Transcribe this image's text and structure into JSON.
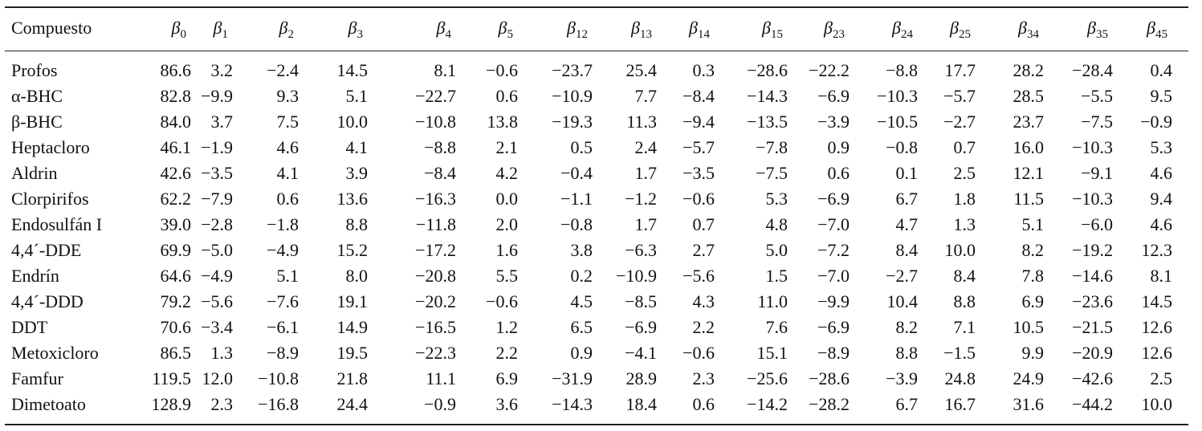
{
  "table": {
    "header": [
      "Compuesto",
      {
        "symbol": "β",
        "subscript": "0"
      },
      {
        "symbol": "β",
        "subscript": "1"
      },
      {
        "symbol": "β",
        "subscript": "2"
      },
      {
        "symbol": "β",
        "subscript": "3"
      },
      {
        "symbol": "β",
        "subscript": "4"
      },
      {
        "symbol": "β",
        "subscript": "5"
      },
      {
        "symbol": "β",
        "subscript": "12"
      },
      {
        "symbol": "β",
        "subscript": "13"
      },
      {
        "symbol": "β",
        "subscript": "14"
      },
      {
        "symbol": "β",
        "subscript": "15"
      },
      {
        "symbol": "β",
        "subscript": "23"
      },
      {
        "symbol": "β",
        "subscript": "24"
      },
      {
        "symbol": "β",
        "subscript": "25"
      },
      {
        "symbol": "β",
        "subscript": "34"
      },
      {
        "symbol": "β",
        "subscript": "35"
      },
      {
        "symbol": "β",
        "subscript": "45"
      }
    ],
    "rows": [
      [
        "Profos",
        "86.6",
        "3.2",
        "−2.4",
        "14.5",
        "8.1",
        "−0.6",
        "−23.7",
        "25.4",
        "0.3",
        "−28.6",
        "−22.2",
        "−8.8",
        "17.7",
        "28.2",
        "−28.4",
        "0.4"
      ],
      [
        "α-BHC",
        "82.8",
        "−9.9",
        "9.3",
        "5.1",
        "−22.7",
        "0.6",
        "−10.9",
        "7.7",
        "−8.4",
        "−14.3",
        "−6.9",
        "−10.3",
        "−5.7",
        "28.5",
        "−5.5",
        "9.5"
      ],
      [
        "β-BHC",
        "84.0",
        "3.7",
        "7.5",
        "10.0",
        "−10.8",
        "13.8",
        "−19.3",
        "11.3",
        "−9.4",
        "−13.5",
        "−3.9",
        "−10.5",
        "−2.7",
        "23.7",
        "−7.5",
        "−0.9"
      ],
      [
        "Heptacloro",
        "46.1",
        "−1.9",
        "4.6",
        "4.1",
        "−8.8",
        "2.1",
        "0.5",
        "2.4",
        "−5.7",
        "−7.8",
        "0.9",
        "−0.8",
        "0.7",
        "16.0",
        "−10.3",
        "5.3"
      ],
      [
        "Aldrin",
        "42.6",
        "−3.5",
        "4.1",
        "3.9",
        "−8.4",
        "4.2",
        "−0.4",
        "1.7",
        "−3.5",
        "−7.5",
        "0.6",
        "0.1",
        "2.5",
        "12.1",
        "−9.1",
        "4.6"
      ],
      [
        "Clorpirifos",
        "62.2",
        "−7.9",
        "0.6",
        "13.6",
        "−16.3",
        "0.0",
        "−1.1",
        "−1.2",
        "−0.6",
        "5.3",
        "−6.9",
        "6.7",
        "1.8",
        "11.5",
        "−10.3",
        "9.4"
      ],
      [
        "Endosulfán I",
        "39.0",
        "−2.8",
        "−1.8",
        "8.8",
        "−11.8",
        "2.0",
        "−0.8",
        "1.7",
        "0.7",
        "4.8",
        "−7.0",
        "4.7",
        "1.3",
        "5.1",
        "−6.0",
        "4.6"
      ],
      [
        "4,4´-DDE",
        "69.9",
        "−5.0",
        "−4.9",
        "15.2",
        "−17.2",
        "1.6",
        "3.8",
        "−6.3",
        "2.7",
        "5.0",
        "−7.2",
        "8.4",
        "10.0",
        "8.2",
        "−19.2",
        "12.3"
      ],
      [
        "Endrín",
        "64.6",
        "−4.9",
        "5.1",
        "8.0",
        "−20.8",
        "5.5",
        "0.2",
        "−10.9",
        "−5.6",
        "1.5",
        "−7.0",
        "−2.7",
        "8.4",
        "7.8",
        "−14.6",
        "8.1"
      ],
      [
        "4,4´-DDD",
        "79.2",
        "−5.6",
        "−7.6",
        "19.1",
        "−20.2",
        "−0.6",
        "4.5",
        "−8.5",
        "4.3",
        "11.0",
        "−9.9",
        "10.4",
        "8.8",
        "6.9",
        "−23.6",
        "14.5"
      ],
      [
        "DDT",
        "70.6",
        "−3.4",
        "−6.1",
        "14.9",
        "−16.5",
        "1.2",
        "6.5",
        "−6.9",
        "2.2",
        "7.6",
        "−6.9",
        "8.2",
        "7.1",
        "10.5",
        "−21.5",
        "12.6"
      ],
      [
        "Metoxicloro",
        "86.5",
        "1.3",
        "−8.9",
        "19.5",
        "−22.3",
        "2.2",
        "0.9",
        "−4.1",
        "−0.6",
        "15.1",
        "−8.9",
        "8.8",
        "−1.5",
        "9.9",
        "−20.9",
        "12.6"
      ],
      [
        "Famfur",
        "119.5",
        "12.0",
        "−10.8",
        "21.8",
        "11.1",
        "6.9",
        "−31.9",
        "28.9",
        "2.3",
        "−25.6",
        "−28.6",
        "−3.9",
        "24.8",
        "24.9",
        "−42.6",
        "2.5"
      ],
      [
        "Dimetoato",
        "128.9",
        "2.3",
        "−16.8",
        "24.4",
        "−0.9",
        "3.6",
        "−14.3",
        "18.4",
        "0.6",
        "−14.2",
        "−28.2",
        "6.7",
        "16.7",
        "31.6",
        "−44.2",
        "10.0"
      ]
    ]
  }
}
